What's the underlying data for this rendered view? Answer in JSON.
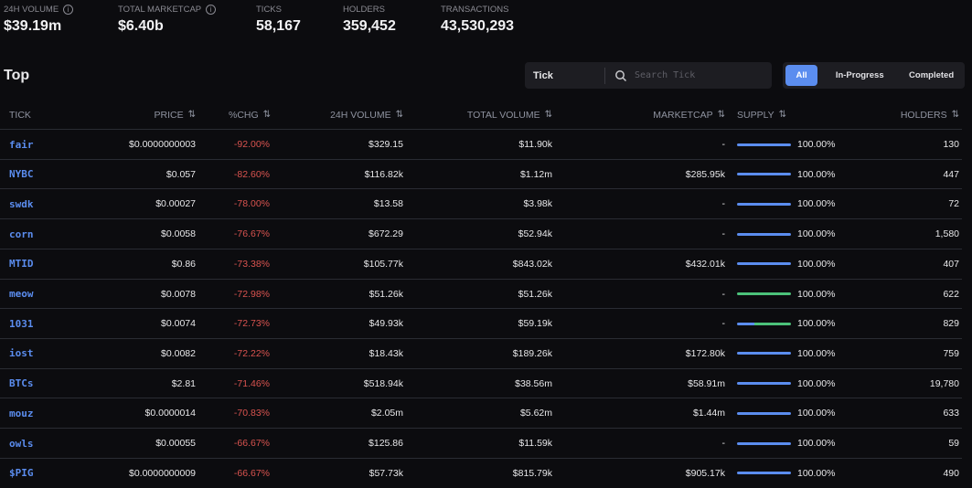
{
  "stats": [
    {
      "label": "24H VOLUME",
      "value": "$39.19m",
      "info": true
    },
    {
      "label": "TOTAL MARKETCAP",
      "value": "$6.40b",
      "info": true
    },
    {
      "label": "TICKS",
      "value": "58,167",
      "info": false
    },
    {
      "label": "HOLDERS",
      "value": "359,452",
      "info": false
    },
    {
      "label": "TRANSACTIONS",
      "value": "43,530,293",
      "info": false
    }
  ],
  "section_title": "Top",
  "search": {
    "selector": "Tick",
    "placeholder": "Search Tick",
    "icon": "search-icon"
  },
  "filters": [
    {
      "label": "All",
      "active": true
    },
    {
      "label": "In-Progress",
      "active": false
    },
    {
      "label": "Completed",
      "active": false
    }
  ],
  "colors": {
    "accent": "#5b8def",
    "negative": "#d9534f",
    "green": "#4cc27a"
  },
  "columns": {
    "tick": "TICK",
    "price": "PRICE",
    "chg": "%CHG",
    "vol": "24H VOLUME",
    "tvol": "TOTAL VOLUME",
    "mcap": "MARKETCAP",
    "supply": "SUPPLY",
    "holders": "HOLDERS",
    "sort_icon": "⇅"
  },
  "rows": [
    {
      "tick": "fair",
      "price": "$0.0000000003",
      "chg": "-92.00%",
      "vol": "$329.15",
      "tvol": "$11.90k",
      "mcap": "-",
      "supply": "100.00%",
      "blue": 1,
      "holders": "130"
    },
    {
      "tick": "NYBC",
      "price": "$0.057",
      "chg": "-82.60%",
      "vol": "$116.82k",
      "tvol": "$1.12m",
      "mcap": "$285.95k",
      "supply": "100.00%",
      "blue": 1,
      "holders": "447"
    },
    {
      "tick": "swdk",
      "price": "$0.00027",
      "chg": "-78.00%",
      "vol": "$13.58",
      "tvol": "$3.98k",
      "mcap": "-",
      "supply": "100.00%",
      "blue": 1,
      "holders": "72"
    },
    {
      "tick": "corn",
      "price": "$0.0058",
      "chg": "-76.67%",
      "vol": "$672.29",
      "tvol": "$52.94k",
      "mcap": "-",
      "supply": "100.00%",
      "blue": 1,
      "holders": "1,580"
    },
    {
      "tick": "MTID",
      "price": "$0.86",
      "chg": "-73.38%",
      "vol": "$105.77k",
      "tvol": "$843.02k",
      "mcap": "$432.01k",
      "supply": "100.00%",
      "blue": 1,
      "holders": "407"
    },
    {
      "tick": "meow",
      "price": "$0.0078",
      "chg": "-72.98%",
      "vol": "$51.26k",
      "tvol": "$51.26k",
      "mcap": "-",
      "supply": "100.00%",
      "blue": 0,
      "holders": "622"
    },
    {
      "tick": "1031",
      "price": "$0.0074",
      "chg": "-72.73%",
      "vol": "$49.93k",
      "tvol": "$59.19k",
      "mcap": "-",
      "supply": "100.00%",
      "blue": 0.32,
      "holders": "829"
    },
    {
      "tick": "iost",
      "price": "$0.0082",
      "chg": "-72.22%",
      "vol": "$18.43k",
      "tvol": "$189.26k",
      "mcap": "$172.80k",
      "supply": "100.00%",
      "blue": 1,
      "holders": "759"
    },
    {
      "tick": "BTCs",
      "price": "$2.81",
      "chg": "-71.46%",
      "vol": "$518.94k",
      "tvol": "$38.56m",
      "mcap": "$58.91m",
      "supply": "100.00%",
      "blue": 1,
      "holders": "19,780"
    },
    {
      "tick": "mouz",
      "price": "$0.0000014",
      "chg": "-70.83%",
      "vol": "$2.05m",
      "tvol": "$5.62m",
      "mcap": "$1.44m",
      "supply": "100.00%",
      "blue": 1,
      "holders": "633"
    },
    {
      "tick": "owls",
      "price": "$0.00055",
      "chg": "-66.67%",
      "vol": "$125.86",
      "tvol": "$11.59k",
      "mcap": "-",
      "supply": "100.00%",
      "blue": 1,
      "holders": "59"
    },
    {
      "tick": "$PIG",
      "price": "$0.0000000009",
      "chg": "-66.67%",
      "vol": "$57.73k",
      "tvol": "$815.79k",
      "mcap": "$905.17k",
      "supply": "100.00%",
      "blue": 1,
      "holders": "490"
    }
  ]
}
